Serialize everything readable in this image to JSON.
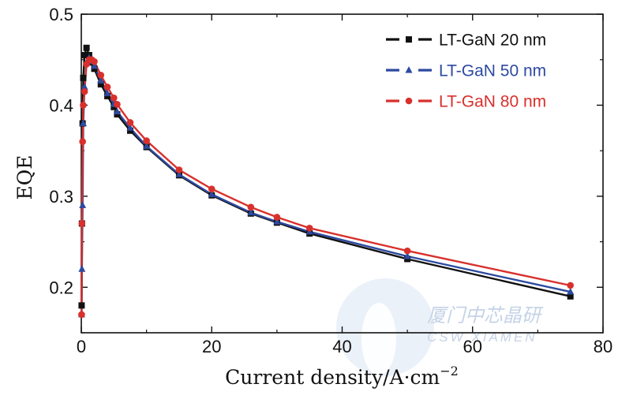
{
  "chart_data": {
    "type": "line",
    "title": "",
    "xlabel": "Current density/A·cm",
    "xlabel_sup": "−2",
    "ylabel": "EQE",
    "xlim": [
      0,
      80
    ],
    "ylim": [
      0.15,
      0.5
    ],
    "xticks": [
      0,
      20,
      40,
      60,
      80
    ],
    "yticks": [
      0.2,
      0.3,
      0.4,
      0.5
    ],
    "xtick_labels": [
      "0",
      "20",
      "40",
      "60",
      "80"
    ],
    "ytick_labels": [
      "0.2",
      "0.3",
      "0.4",
      "0.5"
    ],
    "grid": false,
    "legend_position": "top-right",
    "series": [
      {
        "name": "LT-GaN 20 nm",
        "color": "#111111",
        "marker": "square",
        "x": [
          0.05,
          0.1,
          0.2,
          0.3,
          0.5,
          0.8,
          1.2,
          1.6,
          2.0,
          3.0,
          4.0,
          5.0,
          5.5,
          7.5,
          10,
          15,
          20,
          26,
          30,
          35,
          50,
          75
        ],
        "y": [
          0.18,
          0.27,
          0.38,
          0.43,
          0.455,
          0.463,
          0.455,
          0.447,
          0.44,
          0.423,
          0.41,
          0.398,
          0.39,
          0.372,
          0.354,
          0.323,
          0.301,
          0.281,
          0.271,
          0.259,
          0.231,
          0.19
        ]
      },
      {
        "name": "LT-GaN 50 nm",
        "color": "#2d4aa0",
        "marker": "triangle",
        "x": [
          0.05,
          0.1,
          0.2,
          0.3,
          0.5,
          0.8,
          1.2,
          1.6,
          2.0,
          3.0,
          4.0,
          5.0,
          5.5,
          7.5,
          10,
          15,
          20,
          26,
          30,
          35,
          50,
          75
        ],
        "y": [
          0.17,
          0.22,
          0.29,
          0.38,
          0.42,
          0.447,
          0.452,
          0.448,
          0.443,
          0.427,
          0.413,
          0.401,
          0.393,
          0.375,
          0.355,
          0.324,
          0.302,
          0.282,
          0.272,
          0.261,
          0.234,
          0.195
        ]
      },
      {
        "name": "LT-GaN 80 nm",
        "color": "#d8302c",
        "marker": "circle",
        "x": [
          0.05,
          0.1,
          0.2,
          0.3,
          0.5,
          0.8,
          1.2,
          1.6,
          2.0,
          3.0,
          4.0,
          5.0,
          5.5,
          7.5,
          10,
          15,
          20,
          26,
          30,
          35,
          50,
          75
        ],
        "y": [
          0.17,
          0.27,
          0.36,
          0.4,
          0.415,
          0.445,
          0.45,
          0.45,
          0.448,
          0.433,
          0.42,
          0.408,
          0.401,
          0.381,
          0.361,
          0.329,
          0.308,
          0.288,
          0.277,
          0.265,
          0.24,
          0.202
        ]
      }
    ]
  },
  "watermark": {
    "chinese": "厦门中芯晶研",
    "english": "CSW XIAMEN"
  }
}
